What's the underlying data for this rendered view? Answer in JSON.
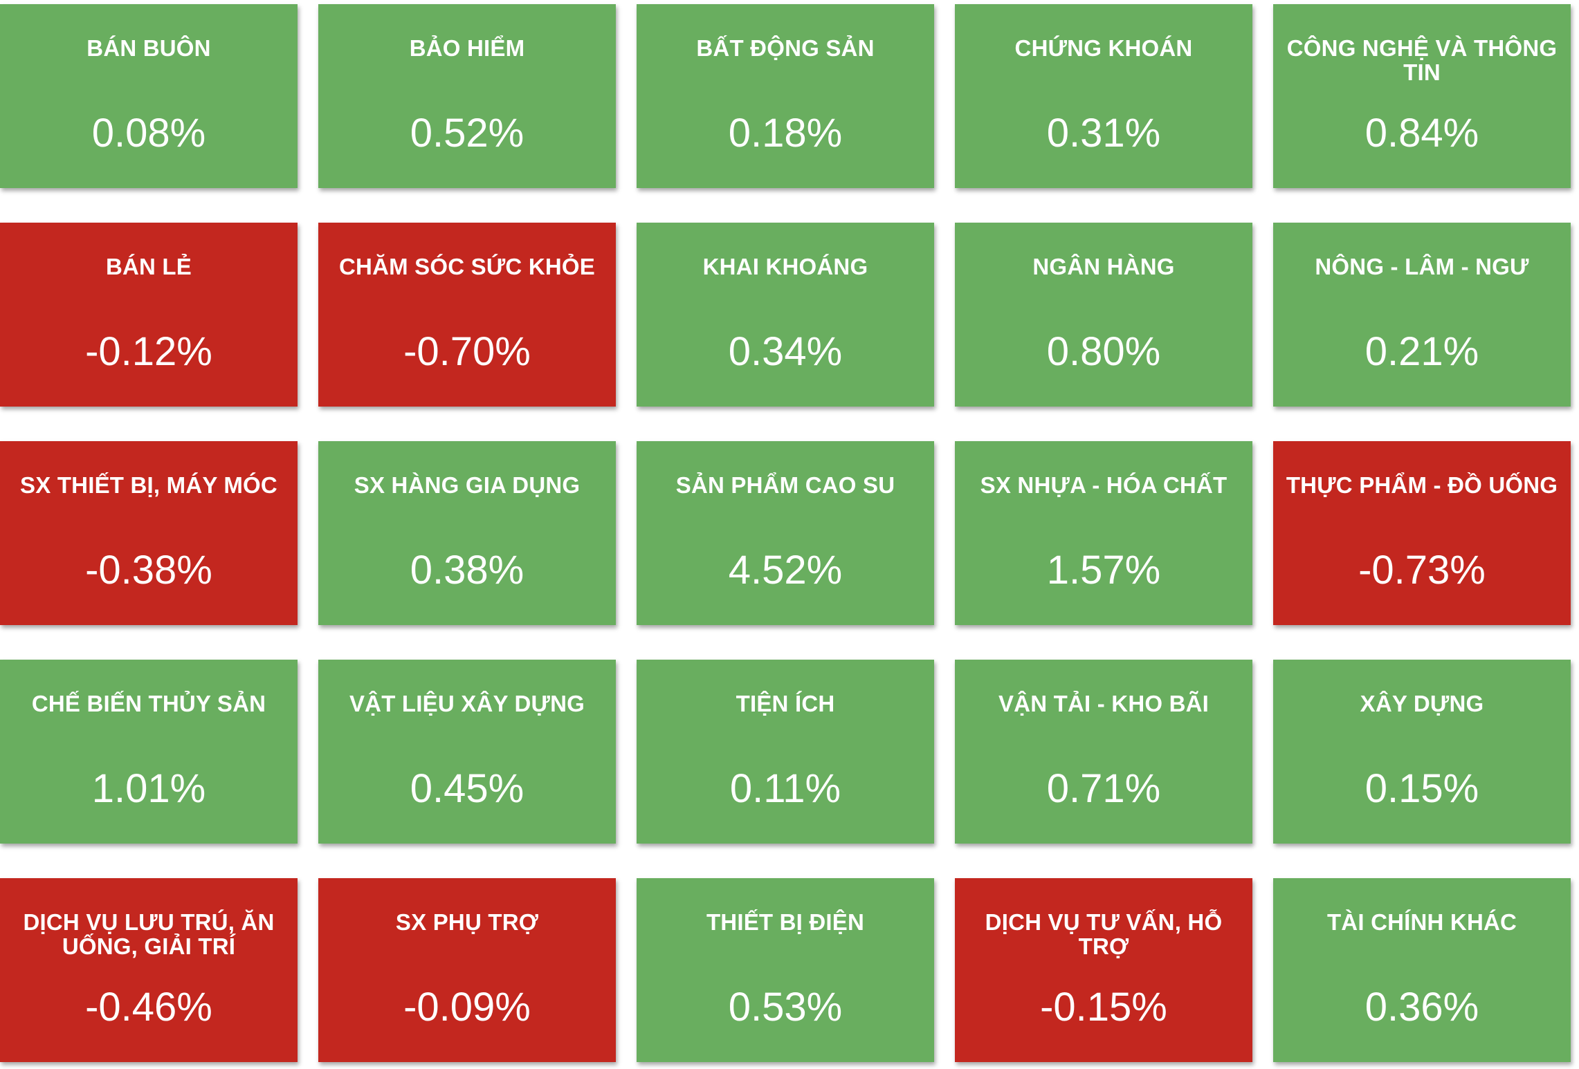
{
  "tiles": [
    {
      "name": "BÁN BUÔN",
      "value": "0.08%",
      "trend": "up"
    },
    {
      "name": "BẢO HIỂM",
      "value": "0.52%",
      "trend": "up"
    },
    {
      "name": "BẤT ĐỘNG SẢN",
      "value": "0.18%",
      "trend": "up"
    },
    {
      "name": "CHỨNG KHOÁN",
      "value": "0.31%",
      "trend": "up"
    },
    {
      "name": "CÔNG NGHỆ VÀ THÔNG TIN",
      "value": "0.84%",
      "trend": "up"
    },
    {
      "name": "BÁN LẺ",
      "value": "-0.12%",
      "trend": "down"
    },
    {
      "name": "CHĂM SÓC SỨC KHỎE",
      "value": "-0.70%",
      "trend": "down"
    },
    {
      "name": "KHAI KHOÁNG",
      "value": "0.34%",
      "trend": "up"
    },
    {
      "name": "NGÂN HÀNG",
      "value": "0.80%",
      "trend": "up"
    },
    {
      "name": "NÔNG - LÂM - NGƯ",
      "value": "0.21%",
      "trend": "up"
    },
    {
      "name": "SX THIẾT BỊ, MÁY MÓC",
      "value": "-0.38%",
      "trend": "down"
    },
    {
      "name": "SX HÀNG GIA DỤNG",
      "value": "0.38%",
      "trend": "up"
    },
    {
      "name": "SẢN PHẨM CAO SU",
      "value": "4.52%",
      "trend": "up"
    },
    {
      "name": "SX NHỰA - HÓA CHẤT",
      "value": "1.57%",
      "trend": "up"
    },
    {
      "name": "THỰC PHẨM - ĐỒ UỐNG",
      "value": "-0.73%",
      "trend": "down"
    },
    {
      "name": "CHẾ BIẾN THỦY SẢN",
      "value": "1.01%",
      "trend": "up"
    },
    {
      "name": "VẬT LIỆU XÂY DỰNG",
      "value": "0.45%",
      "trend": "up"
    },
    {
      "name": "TIỆN ÍCH",
      "value": "0.11%",
      "trend": "up"
    },
    {
      "name": "VẬN TẢI - KHO BÃI",
      "value": "0.71%",
      "trend": "up"
    },
    {
      "name": "XÂY DỰNG",
      "value": "0.15%",
      "trend": "up"
    },
    {
      "name": "DỊCH VỤ LƯU TRÚ, ĂN UỐNG, GIẢI TRÍ",
      "value": "-0.46%",
      "trend": "down"
    },
    {
      "name": "SX PHỤ TRỢ",
      "value": "-0.09%",
      "trend": "down"
    },
    {
      "name": "THIẾT BỊ ĐIỆN",
      "value": "0.53%",
      "trend": "up"
    },
    {
      "name": "DỊCH VỤ TƯ VẤN, HỖ TRỢ",
      "value": "-0.15%",
      "trend": "down"
    },
    {
      "name": "TÀI CHÍNH KHÁC",
      "value": "0.36%",
      "trend": "up"
    }
  ],
  "colors": {
    "up": "#69ae5f",
    "down": "#c3271f",
    "text": "#ffffff"
  }
}
